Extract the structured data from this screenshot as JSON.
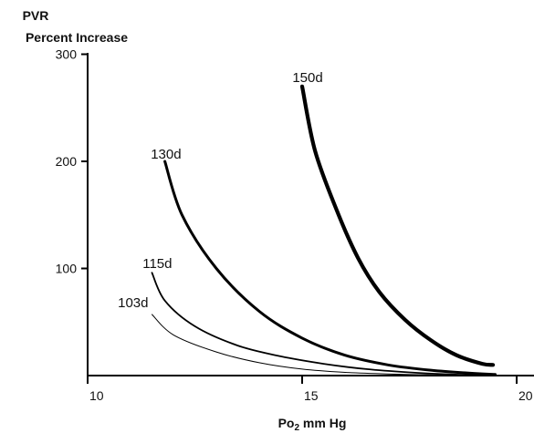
{
  "chart_data": {
    "type": "line",
    "ylabel_lines": [
      "PVR",
      "Percent Increase"
    ],
    "xlabel": {
      "prefix": "Po",
      "subscript": "2",
      "suffix": " mm Hg"
    },
    "xlim": [
      10,
      20
    ],
    "ylim": [
      0,
      300
    ],
    "x_ticks": [
      10,
      15,
      20
    ],
    "y_ticks": [
      100,
      200,
      300
    ],
    "series": [
      {
        "name": "103d",
        "x": [
          11.5,
          12.0,
          13.0,
          14.0,
          15.0,
          16.0,
          17.0,
          18.0,
          19.0,
          19.4
        ],
        "y": [
          57,
          38,
          22,
          12,
          6,
          3,
          1.5,
          0.6,
          0.1,
          0
        ]
      },
      {
        "name": "115d",
        "x": [
          11.5,
          11.8,
          12.5,
          13.5,
          14.5,
          15.5,
          16.5,
          17.5,
          18.5,
          19.5
        ],
        "y": [
          96,
          70,
          46,
          28,
          18,
          11,
          6,
          3,
          1,
          0
        ]
      },
      {
        "name": "130d",
        "x": [
          11.8,
          12.2,
          13.0,
          14.0,
          15.0,
          16.0,
          17.0,
          18.0,
          19.0,
          19.5
        ],
        "y": [
          200,
          150,
          100,
          60,
          35,
          19,
          10,
          5,
          2,
          1
        ]
      },
      {
        "name": "150d",
        "x": [
          15.0,
          15.3,
          15.8,
          16.3,
          16.8,
          17.4,
          18.0,
          18.6,
          19.2,
          19.45
        ],
        "y": [
          270,
          210,
          155,
          110,
          78,
          52,
          33,
          19,
          11,
          10
        ]
      }
    ],
    "series_style": {
      "103d": {
        "color": "#000000"
      },
      "115d": {
        "color": "#000000"
      },
      "130d": {
        "color": "#000000"
      },
      "150d": {
        "color": "#000000"
      }
    },
    "grid": false,
    "legend": "labels-on-curves"
  }
}
